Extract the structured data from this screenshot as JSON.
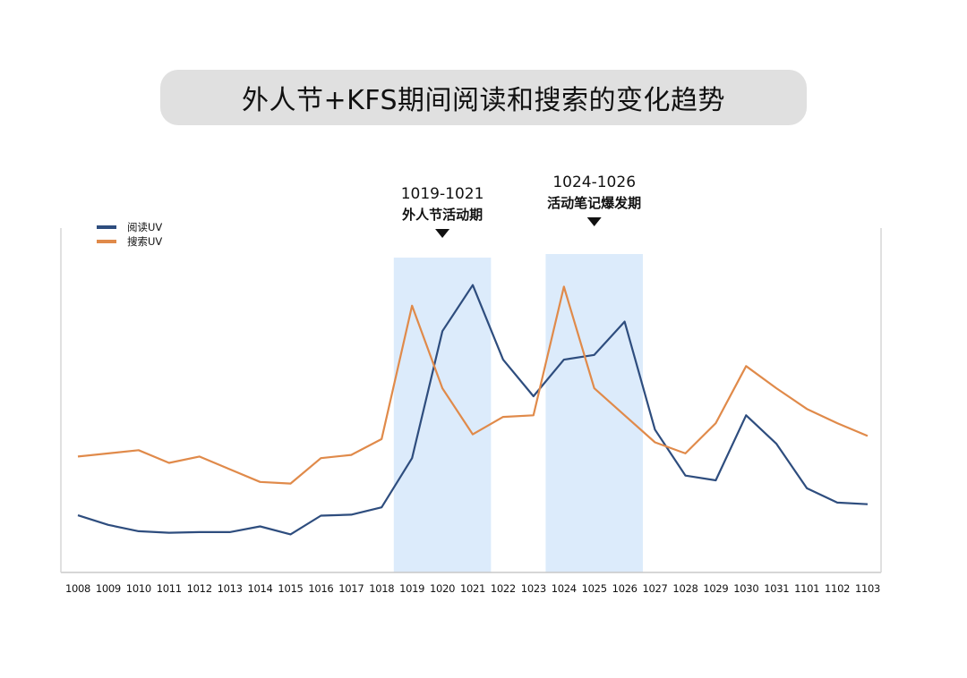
{
  "title": "外人节+KFS期间阅读和搜索的变化趋势",
  "chart_data": {
    "type": "line",
    "title": "外人节+KFS期间阅读和搜索的变化趋势",
    "categories": [
      "1008",
      "1009",
      "1010",
      "1011",
      "1012",
      "1013",
      "1014",
      "1015",
      "1016",
      "1017",
      "1018",
      "1019",
      "1020",
      "1021",
      "1022",
      "1023",
      "1024",
      "1025",
      "1026",
      "1027",
      "1028",
      "1029",
      "1030",
      "1031",
      "1101",
      "1102",
      "1103"
    ],
    "ylim": [
      0,
      100
    ],
    "grid": false,
    "legend_placement": "top-left",
    "series": [
      {
        "name": "阅读UV",
        "color": "#2e4d7e",
        "values": [
          18,
          15,
          13,
          12.5,
          12.7,
          12.7,
          14.5,
          12,
          17.9,
          18.2,
          20.5,
          36,
          76,
          90.5,
          67,
          55.5,
          67,
          68.5,
          79,
          45,
          30.5,
          29,
          49.5,
          40.5,
          26.5,
          22,
          21.5
        ]
      },
      {
        "name": "搜索UV",
        "color": "#e08a4a",
        "values": [
          36.5,
          37.5,
          38.5,
          34.5,
          36.5,
          32.5,
          28.5,
          28,
          36,
          37,
          42,
          84,
          58,
          43.5,
          49,
          49.5,
          90,
          58,
          49.5,
          41,
          37.5,
          47,
          65,
          58,
          51.5,
          47,
          43
        ]
      }
    ],
    "annotations": [
      {
        "range_label": "1019-1021",
        "label": "外人节活动期",
        "from": "1019",
        "to": "1021"
      },
      {
        "range_label": "1024-1026",
        "label": "活动笔记爆发期",
        "from": "1024",
        "to": "1026"
      }
    ],
    "highlight_color": "#dcebfb"
  }
}
